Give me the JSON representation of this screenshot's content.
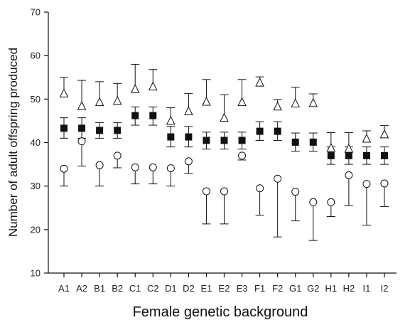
{
  "chart_data": {
    "type": "scatter",
    "xlabel": "Female genetic background",
    "ylabel": "Number of adult offspring produced",
    "ylim": [
      10,
      70
    ],
    "yticks": [
      10,
      20,
      30,
      40,
      50,
      60,
      70
    ],
    "grid": false,
    "categories": [
      "A1",
      "A2",
      "B1",
      "B2",
      "C1",
      "C2",
      "D1",
      "D2",
      "E1",
      "E2",
      "E3",
      "F1",
      "F2",
      "G1",
      "G2",
      "H1",
      "H2",
      "I1",
      "I2"
    ],
    "error_bar_direction": {
      "triangle": "up",
      "square": "both",
      "circle": "down"
    },
    "series": [
      {
        "marker": "triangle-open",
        "values": [
          51.2,
          48.3,
          49.2,
          49.5,
          52.2,
          52.8,
          44.9,
          47.1,
          49.3,
          45.6,
          49.2,
          53.7,
          48.2,
          48.9,
          49.0,
          38.7,
          38.5,
          40.8,
          41.8
        ],
        "err_high": [
          55.0,
          54.3,
          54.0,
          53.6,
          58.0,
          56.8,
          48.0,
          51.3,
          54.5,
          51.0,
          54.5,
          55.1,
          49.9,
          52.7,
          51.2,
          42.3,
          42.3,
          42.7,
          43.9
        ]
      },
      {
        "marker": "square-filled",
        "values": [
          43.3,
          43.3,
          42.8,
          42.8,
          46.2,
          46.2,
          41.3,
          41.3,
          40.5,
          40.5,
          40.5,
          42.6,
          42.6,
          40.1,
          40.1,
          37.0,
          37.0,
          37.0,
          37.0
        ],
        "err_low": [
          41.0,
          41.0,
          41.0,
          41.0,
          44.0,
          44.0,
          39.0,
          39.0,
          38.5,
          38.5,
          38.5,
          40.5,
          40.5,
          38.0,
          38.0,
          35.0,
          35.0,
          35.0,
          35.0
        ],
        "err_high": [
          45.7,
          45.7,
          44.6,
          44.6,
          48.2,
          48.2,
          43.7,
          43.7,
          42.4,
          42.4,
          42.4,
          44.8,
          44.8,
          42.2,
          42.2,
          39.0,
          39.0,
          39.0,
          39.0
        ]
      },
      {
        "marker": "circle-open",
        "values": [
          34.0,
          40.3,
          34.8,
          37.0,
          34.3,
          34.3,
          34.1,
          35.7,
          28.8,
          28.8,
          37.0,
          29.5,
          31.7,
          28.7,
          26.3,
          26.3,
          32.5,
          30.5,
          30.6
        ],
        "err_low": [
          30.0,
          34.6,
          30.0,
          34.2,
          30.5,
          30.5,
          30.0,
          32.9,
          21.3,
          21.3,
          36.0,
          23.3,
          18.3,
          22.0,
          17.5,
          23.0,
          25.5,
          21.0,
          25.3
        ]
      }
    ]
  }
}
